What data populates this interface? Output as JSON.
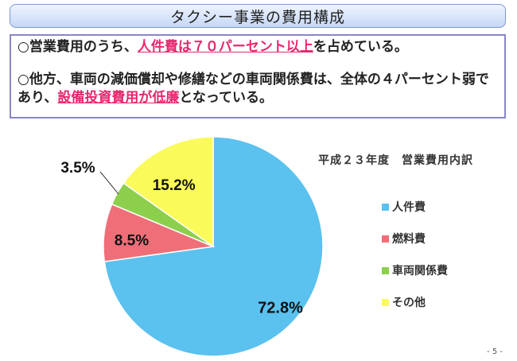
{
  "slide": {
    "title": "タクシー事業の費用構成",
    "page_number": "- 5 -"
  },
  "summary": {
    "bullet1": {
      "prefix": "○営業費用のうち、",
      "highlight": "人件費は７０パーセント以上",
      "suffix": "を占めている。"
    },
    "bullet2": {
      "prefix": "○他方、車両の減価償却や修繕などの車両関係費は、全体の４パーセント弱であり、",
      "highlight": "設備投資費用が低廉",
      "suffix": "となっている。"
    }
  },
  "chart_data": {
    "type": "pie",
    "title": "平成２３年度　営業費用内訳",
    "legend_position": "right",
    "slices": [
      {
        "label": "人件費",
        "value": 72.8,
        "display": "72.8%",
        "color": "#5bc1ef"
      },
      {
        "label": "燃料費",
        "value": 8.5,
        "display": "8.5%",
        "color": "#f06e78"
      },
      {
        "label": "車両関係費",
        "value": 3.5,
        "display": "3.5%",
        "color": "#8ccf4d"
      },
      {
        "label": "その他",
        "value": 15.2,
        "display": "15.2%",
        "color": "#fafa5a"
      }
    ]
  }
}
